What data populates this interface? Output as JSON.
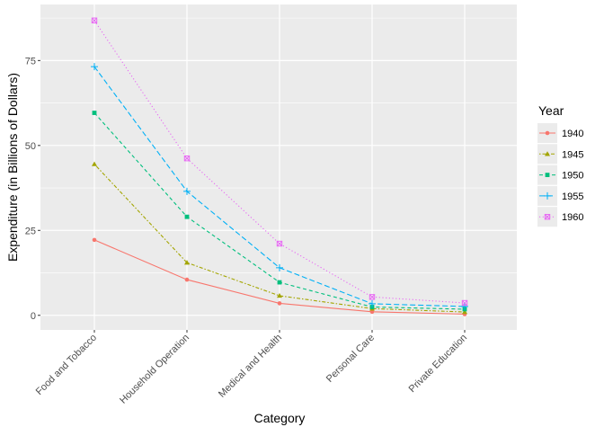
{
  "chart_data": {
    "type": "line",
    "xlabel": "Category",
    "ylabel": "Expenditure (in Billions of Dollars)",
    "categories": [
      "Food and Tobacco",
      "Household Operation",
      "Medical and Health",
      "Personal Care",
      "Private Education"
    ],
    "yticks": [
      0,
      25,
      50,
      75
    ],
    "ylim": [
      -4.3,
      91.5
    ],
    "grid": true,
    "legend": {
      "title": "Year",
      "placement": "right"
    },
    "series": [
      {
        "name": "1940",
        "color": "#F8766D",
        "marker": "circle",
        "linetype": "solid",
        "values": [
          22.2,
          10.5,
          3.53,
          1.04,
          0.341
        ]
      },
      {
        "name": "1945",
        "color": "#A3A500",
        "marker": "triangle",
        "linetype": "dotdash",
        "values": [
          44.5,
          15.5,
          5.76,
          1.98,
          0.974
        ]
      },
      {
        "name": "1950",
        "color": "#00BF7D",
        "marker": "square",
        "linetype": "dashed",
        "values": [
          59.6,
          29.0,
          9.71,
          2.45,
          1.8
        ]
      },
      {
        "name": "1955",
        "color": "#00B0F6",
        "marker": "plus",
        "linetype": "longdash",
        "values": [
          73.2,
          36.5,
          14.0,
          3.4,
          2.6
        ]
      },
      {
        "name": "1960",
        "color": "#E76BF3",
        "marker": "boxed-x",
        "linetype": "dotted",
        "values": [
          86.8,
          46.2,
          21.1,
          5.4,
          3.64
        ]
      }
    ]
  }
}
